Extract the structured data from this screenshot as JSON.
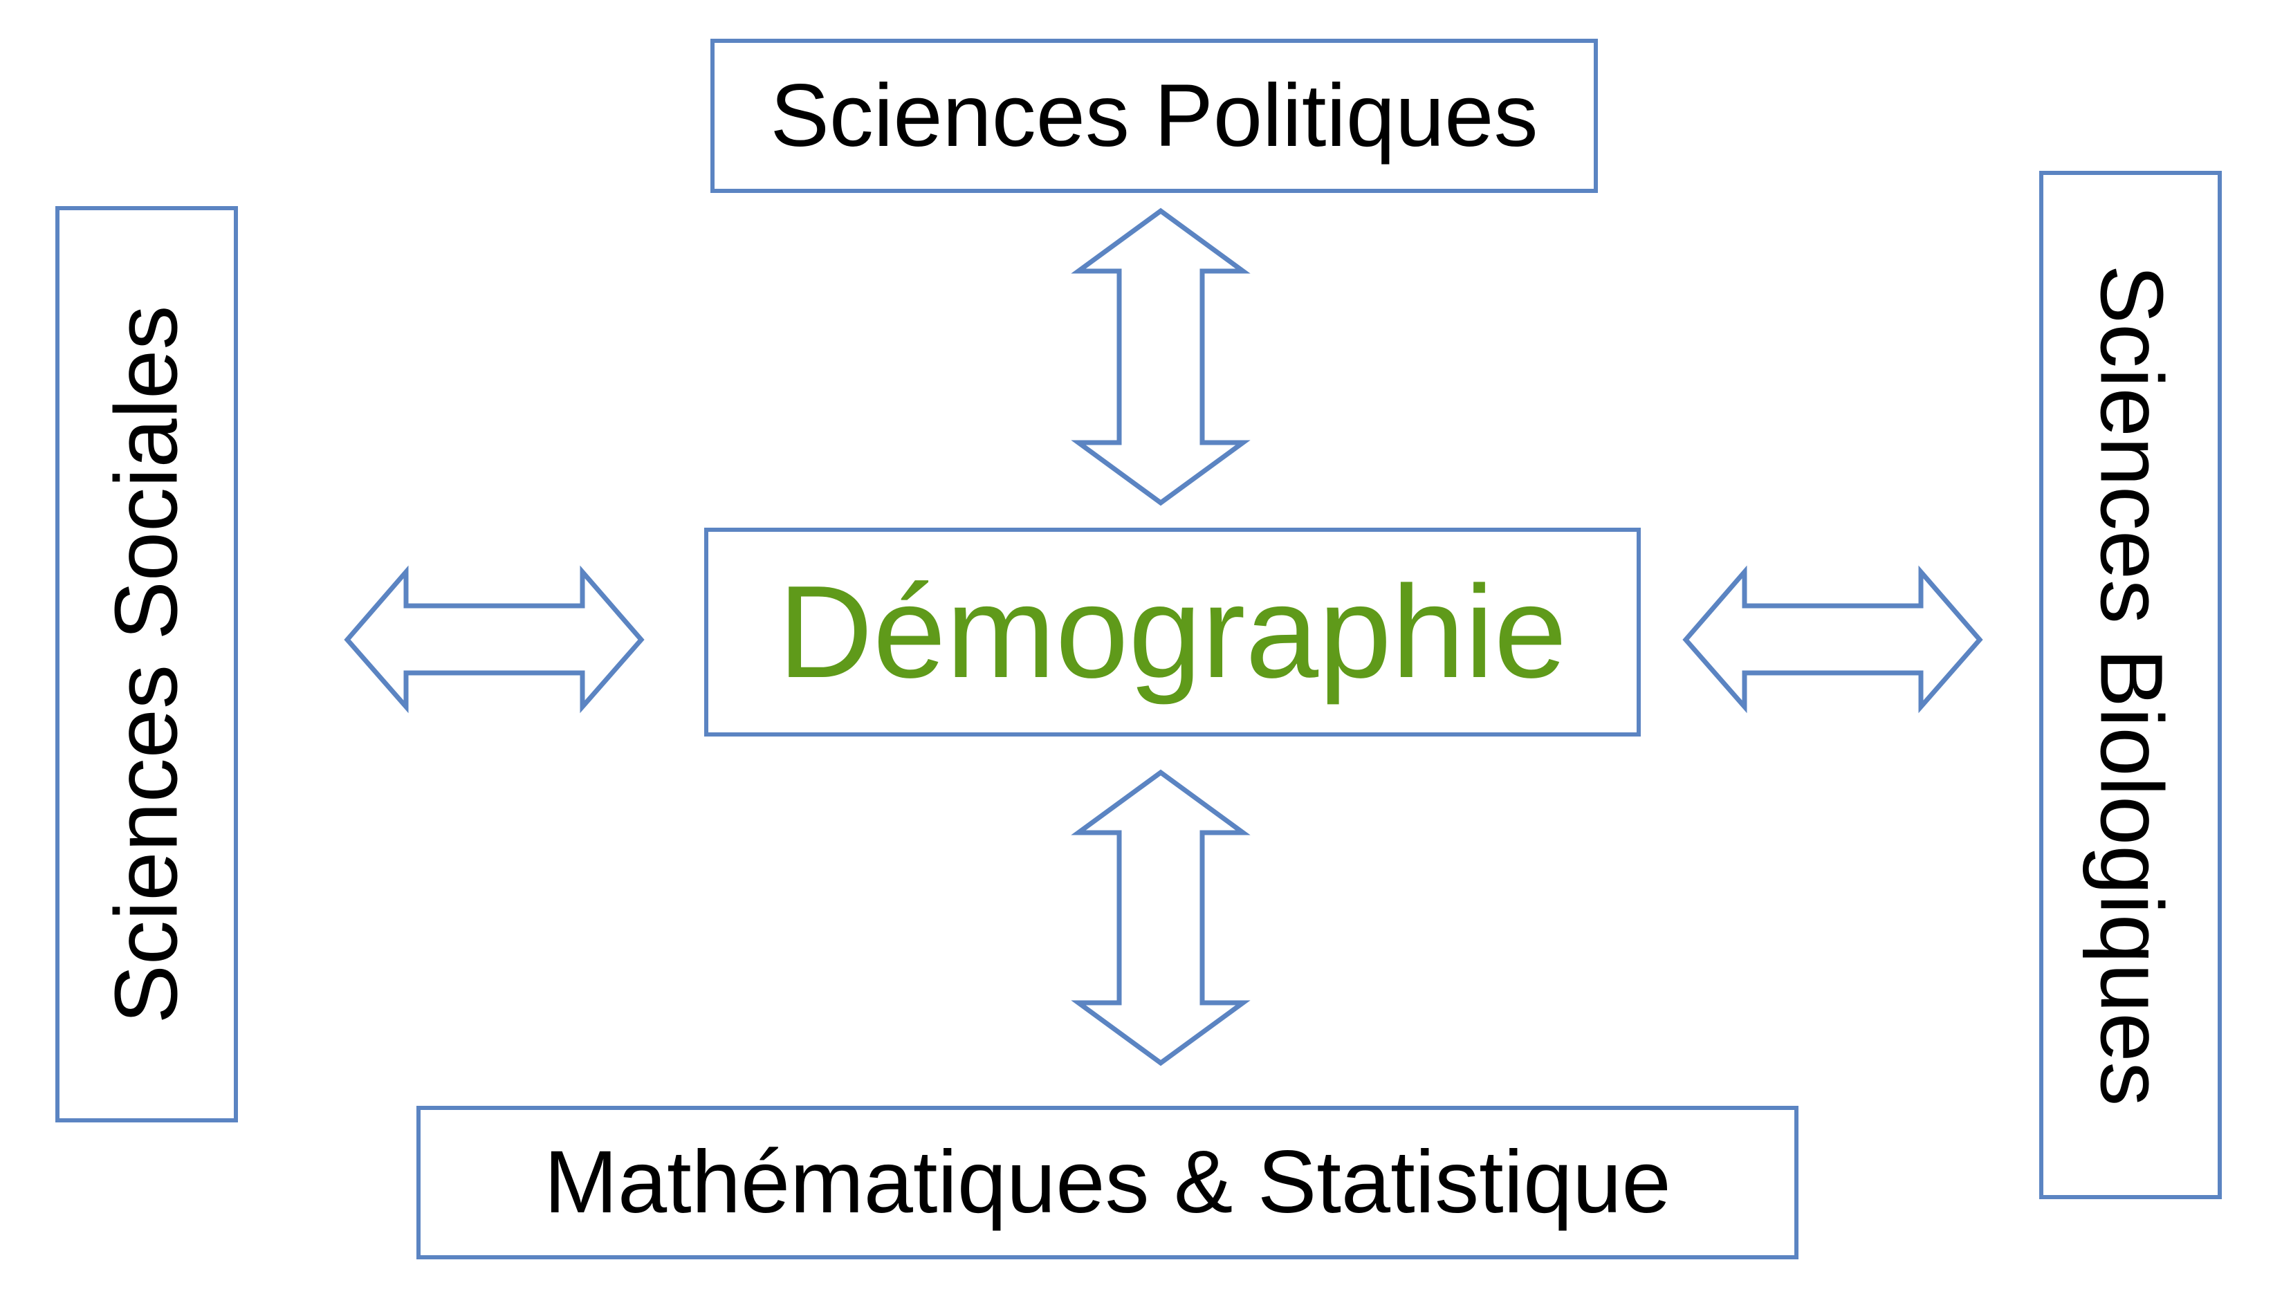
{
  "diagram": {
    "center": {
      "label": "Démographie",
      "color": "#5f9a1a"
    },
    "top": {
      "label": "Sciences Politiques"
    },
    "bottom": {
      "label": "Mathématiques & Statistique"
    },
    "left": {
      "label": "Sciences Sociales"
    },
    "right": {
      "label": "Sciences Biologiques"
    },
    "border_color": "#5b84c2",
    "arrow_style": "double-headed hollow arrows",
    "arrows": [
      {
        "id": "arrow-top",
        "connects": [
          "Démographie",
          "Sciences Politiques"
        ]
      },
      {
        "id": "arrow-bottom",
        "connects": [
          "Démographie",
          "Mathématiques & Statistique"
        ]
      },
      {
        "id": "arrow-left",
        "connects": [
          "Démographie",
          "Sciences Sociales"
        ]
      },
      {
        "id": "arrow-right",
        "connects": [
          "Démographie",
          "Sciences Biologiques"
        ]
      }
    ]
  }
}
